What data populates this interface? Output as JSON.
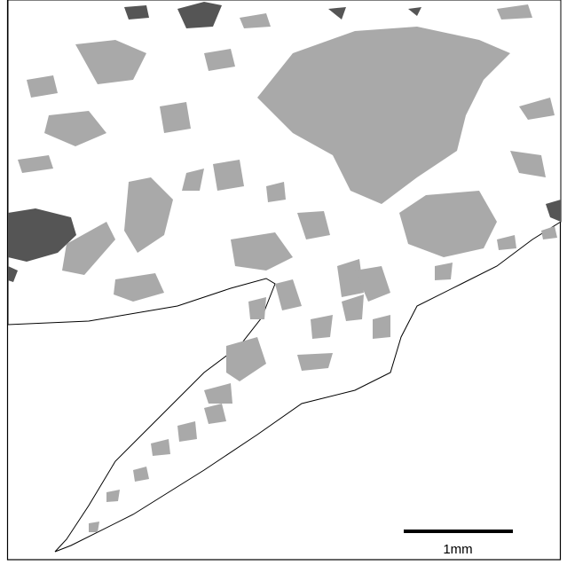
{
  "scale_bar": {
    "label": "1mm"
  }
}
